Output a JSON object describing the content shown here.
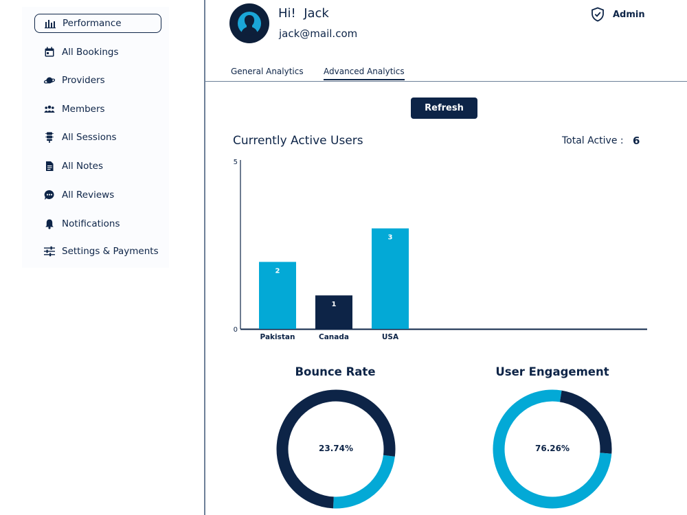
{
  "sidebar": {
    "items": [
      {
        "label": "Performance",
        "icon": "bar-chart-icon",
        "active": true
      },
      {
        "label": "All Bookings",
        "icon": "calendar-icon",
        "active": false
      },
      {
        "label": "Providers",
        "icon": "planet-icon",
        "active": false
      },
      {
        "label": "Members",
        "icon": "group-icon",
        "active": false
      },
      {
        "label": "All Sessions",
        "icon": "sessions-icon",
        "active": false
      },
      {
        "label": "All Notes",
        "icon": "note-icon",
        "active": false
      },
      {
        "label": "All Reviews",
        "icon": "chat-bubble-icon",
        "active": false
      },
      {
        "label": "Notifications",
        "icon": "bell-icon",
        "active": false
      },
      {
        "label": "Settings & Payments",
        "icon": "sliders-icon",
        "active": false
      }
    ]
  },
  "header": {
    "greeting": "Hi!  Jack",
    "email": "jack@mail.com",
    "role": "Admin"
  },
  "tabs": [
    {
      "label": "General Analytics",
      "active": false
    },
    {
      "label": "Advanced Analytics",
      "active": true
    }
  ],
  "actions": {
    "refresh_label": "Refresh"
  },
  "active_users": {
    "title": "Currently Active Users",
    "total_label": "Total Active :",
    "total_value": "6"
  },
  "colors": {
    "navy": "#0d2447",
    "cyan": "#03a9d6"
  },
  "chart_data": [
    {
      "type": "bar",
      "title": "Currently Active Users",
      "categories": [
        "Pakistan",
        "Canada",
        "USA"
      ],
      "values": [
        2,
        1,
        3
      ],
      "bar_colors": [
        "#03a9d6",
        "#0d2447",
        "#03a9d6"
      ],
      "ylim": [
        0,
        5
      ],
      "yticks": [
        "0",
        "5"
      ],
      "grid": false
    },
    {
      "type": "pie",
      "title": "Bounce Rate",
      "center_label": "23.74%",
      "values": [
        23.74,
        76.26
      ],
      "colors": [
        "#03a9d6",
        "#0d2447"
      ]
    },
    {
      "type": "pie",
      "title": "User Engagement",
      "center_label": "76.26%",
      "values": [
        76.26,
        23.74
      ],
      "colors": [
        "#03a9d6",
        "#0d2447"
      ]
    }
  ]
}
